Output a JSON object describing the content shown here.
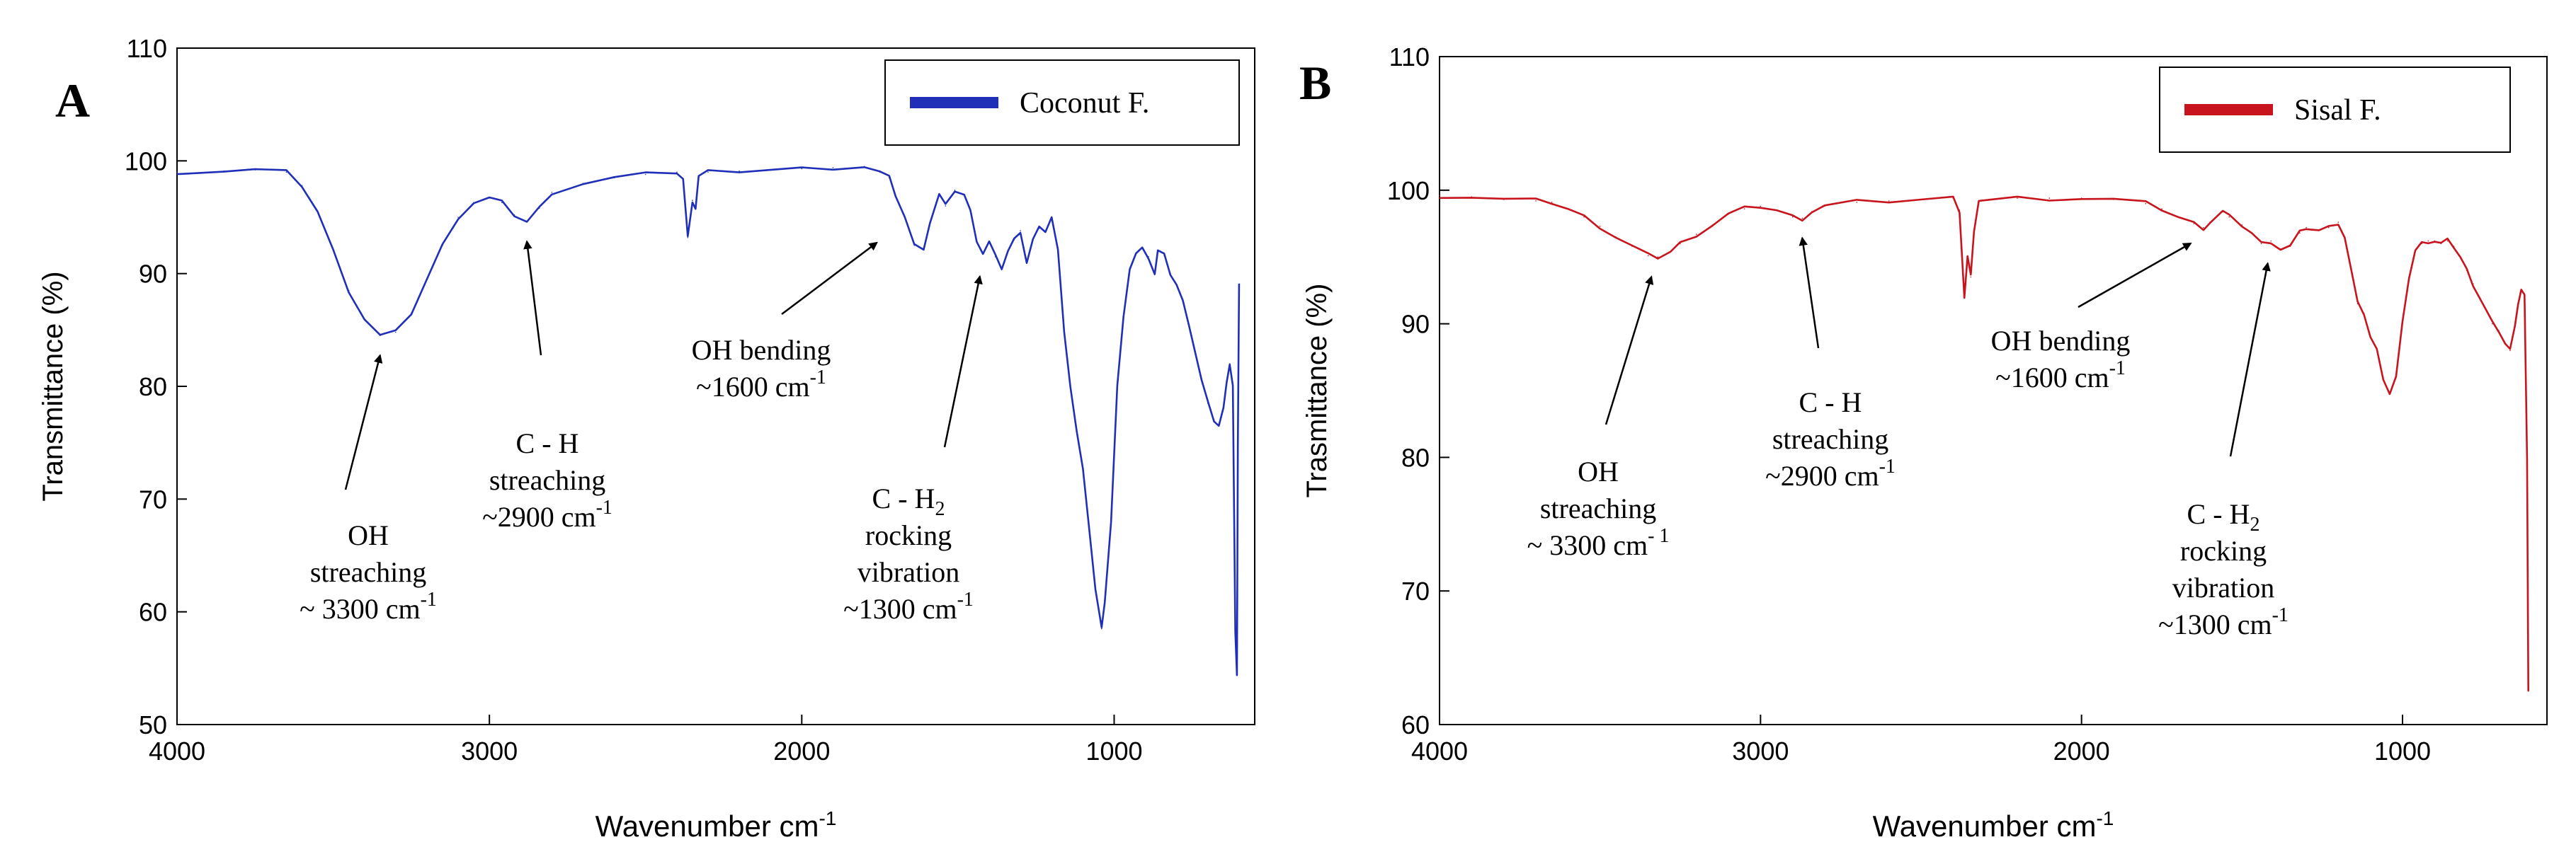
{
  "chart_data": [
    {
      "type": "line",
      "panel_label": "A",
      "xlabel": "Wavenumber cm",
      "xlabel_sup": "-1",
      "ylabel": "Transmittance (%)",
      "xlim": [
        4000,
        550
      ],
      "ylim": [
        50,
        110
      ],
      "x_ticks": [
        4000,
        3000,
        2000,
        1000
      ],
      "y_ticks": [
        50,
        60,
        70,
        80,
        90,
        100,
        110
      ],
      "series": [
        {
          "name": "Coconut F.",
          "color": "#1f2fb8",
          "points": [
            [
              4000,
              99.0
            ],
            [
              3850,
              99.1
            ],
            [
              3750,
              99.2
            ],
            [
              3650,
              99.0
            ],
            [
              3600,
              97.8
            ],
            [
              3550,
              95.5
            ],
            [
              3500,
              92.0
            ],
            [
              3450,
              88.5
            ],
            [
              3400,
              86.0
            ],
            [
              3350,
              84.5
            ],
            [
              3300,
              84.8
            ],
            [
              3250,
              86.5
            ],
            [
              3200,
              89.5
            ],
            [
              3150,
              92.5
            ],
            [
              3100,
              95.0
            ],
            [
              3050,
              96.3
            ],
            [
              3000,
              96.7
            ],
            [
              2960,
              96.3
            ],
            [
              2920,
              95.2
            ],
            [
              2880,
              94.6
            ],
            [
              2840,
              95.8
            ],
            [
              2800,
              97.2
            ],
            [
              2700,
              98.0
            ],
            [
              2600,
              98.5
            ],
            [
              2500,
              98.8
            ],
            [
              2400,
              99.0
            ],
            [
              2380,
              98.4
            ],
            [
              2365,
              93.2
            ],
            [
              2350,
              96.5
            ],
            [
              2340,
              95.8
            ],
            [
              2330,
              98.6
            ],
            [
              2300,
              99.0
            ],
            [
              2200,
              99.1
            ],
            [
              2100,
              99.2
            ],
            [
              2000,
              99.3
            ],
            [
              1900,
              99.4
            ],
            [
              1800,
              99.5
            ],
            [
              1750,
              99.0
            ],
            [
              1720,
              98.5
            ],
            [
              1700,
              97.0
            ],
            [
              1670,
              95.0
            ],
            [
              1640,
              92.5
            ],
            [
              1610,
              92.3
            ],
            [
              1590,
              94.5
            ],
            [
              1560,
              97.0
            ],
            [
              1540,
              96.0
            ],
            [
              1510,
              97.4
            ],
            [
              1480,
              97.0
            ],
            [
              1460,
              95.5
            ],
            [
              1440,
              93.0
            ],
            [
              1420,
              91.8
            ],
            [
              1400,
              92.8
            ],
            [
              1380,
              91.5
            ],
            [
              1360,
              90.5
            ],
            [
              1340,
              92.0
            ],
            [
              1320,
              93.0
            ],
            [
              1300,
              93.8
            ],
            [
              1280,
              91.0
            ],
            [
              1260,
              93.0
            ],
            [
              1240,
              94.0
            ],
            [
              1220,
              93.8
            ],
            [
              1200,
              95.0
            ],
            [
              1180,
              92.0
            ],
            [
              1160,
              85.0
            ],
            [
              1140,
              80.0
            ],
            [
              1120,
              76.0
            ],
            [
              1100,
              72.5
            ],
            [
              1080,
              67.5
            ],
            [
              1060,
              62.0
            ],
            [
              1040,
              58.5
            ],
            [
              1030,
              61.0
            ],
            [
              1010,
              68.0
            ],
            [
              990,
              80.0
            ],
            [
              970,
              86.0
            ],
            [
              950,
              90.5
            ],
            [
              930,
              91.8
            ],
            [
              910,
              92.2
            ],
            [
              890,
              91.5
            ],
            [
              870,
              90.0
            ],
            [
              860,
              92.0
            ],
            [
              840,
              91.6
            ],
            [
              820,
              90.0
            ],
            [
              800,
              89.0
            ],
            [
              780,
              87.5
            ],
            [
              760,
              85.5
            ],
            [
              740,
              83.0
            ],
            [
              720,
              80.5
            ],
            [
              700,
              78.5
            ],
            [
              680,
              77.0
            ],
            [
              665,
              76.5
            ],
            [
              650,
              78.0
            ],
            [
              640,
              80.5
            ],
            [
              630,
              82.0
            ],
            [
              620,
              80.0
            ],
            [
              612,
              58.0
            ],
            [
              607,
              54.5
            ],
            [
              604,
              75.0
            ],
            [
              600,
              89.0
            ]
          ]
        }
      ],
      "legend": {
        "label": "Coconut F.",
        "position": "top-right"
      },
      "annotations": [
        {
          "id": "oh-str",
          "lines": [
            "OH",
            "streaching",
            "~ 3300 cm"
          ],
          "sup": "-1",
          "target": [
            3350,
            84.5
          ]
        },
        {
          "id": "ch-str",
          "lines": [
            "C - H",
            "streaching",
            "~2900 cm"
          ],
          "sup": "-1",
          "target": [
            2880,
            94.6
          ]
        },
        {
          "id": "oh-bend",
          "lines": [
            "OH bending",
            "~1600 cm"
          ],
          "sup": "-1",
          "target": [
            1760,
            94.5
          ]
        },
        {
          "id": "ch2-rock",
          "lines": [
            "C - H",
            "rocking",
            "vibration",
            "~1300 cm"
          ],
          "sub": "2",
          "sup": "-1",
          "target": [
            1430,
            91.5
          ]
        }
      ]
    },
    {
      "type": "line",
      "panel_label": "B",
      "xlabel": "Wavenumber cm",
      "xlabel_sup": "-1",
      "ylabel": "Trasmittance (%)",
      "xlim": [
        4000,
        550
      ],
      "ylim": [
        60,
        110
      ],
      "x_ticks": [
        4000,
        3000,
        2000,
        1000
      ],
      "y_ticks": [
        60,
        70,
        80,
        90,
        100,
        110
      ],
      "series": [
        {
          "name": "Sisal F.",
          "color": "#c8141c",
          "points": [
            [
              4000,
              99.6
            ],
            [
              3900,
              99.5
            ],
            [
              3800,
              99.3
            ],
            [
              3700,
              99.2
            ],
            [
              3650,
              99.1
            ],
            [
              3600,
              98.6
            ],
            [
              3550,
              98.0
            ],
            [
              3500,
              97.3
            ],
            [
              3450,
              96.5
            ],
            [
              3400,
              95.8
            ],
            [
              3350,
              95.1
            ],
            [
              3320,
              95.0
            ],
            [
              3280,
              95.4
            ],
            [
              3250,
              96.0
            ],
            [
              3200,
              96.7
            ],
            [
              3150,
              97.4
            ],
            [
              3100,
              98.2
            ],
            [
              3050,
              98.6
            ],
            [
              3000,
              98.8
            ],
            [
              2950,
              98.5
            ],
            [
              2900,
              98.0
            ],
            [
              2870,
              97.9
            ],
            [
              2840,
              98.4
            ],
            [
              2800,
              98.8
            ],
            [
              2700,
              99.1
            ],
            [
              2600,
              99.2
            ],
            [
              2500,
              99.3
            ],
            [
              2400,
              99.4
            ],
            [
              2380,
              98.5
            ],
            [
              2365,
              92.0
            ],
            [
              2355,
              95.0
            ],
            [
              2345,
              93.5
            ],
            [
              2335,
              97.0
            ],
            [
              2320,
              99.2
            ],
            [
              2200,
              99.4
            ],
            [
              2100,
              99.4
            ],
            [
              2000,
              99.4
            ],
            [
              1900,
              99.3
            ],
            [
              1800,
              99.0
            ],
            [
              1750,
              98.6
            ],
            [
              1700,
              98.0
            ],
            [
              1650,
              97.5
            ],
            [
              1620,
              97.2
            ],
            [
              1600,
              97.6
            ],
            [
              1560,
              98.4
            ],
            [
              1540,
              98.0
            ],
            [
              1500,
              97.4
            ],
            [
              1470,
              96.8
            ],
            [
              1440,
              96.0
            ],
            [
              1410,
              96.2
            ],
            [
              1380,
              95.6
            ],
            [
              1350,
              95.8
            ],
            [
              1320,
              96.8
            ],
            [
              1300,
              97.2
            ],
            [
              1260,
              97.0
            ],
            [
              1230,
              97.2
            ],
            [
              1200,
              97.6
            ],
            [
              1180,
              96.5
            ],
            [
              1160,
              94.0
            ],
            [
              1140,
              91.5
            ],
            [
              1120,
              90.8
            ],
            [
              1100,
              89.0
            ],
            [
              1080,
              88.0
            ],
            [
              1060,
              86.0
            ],
            [
              1040,
              84.8
            ],
            [
              1020,
              86.0
            ],
            [
              1000,
              90.0
            ],
            [
              980,
              93.5
            ],
            [
              960,
              95.5
            ],
            [
              940,
              96.0
            ],
            [
              920,
              96.2
            ],
            [
              900,
              96.2
            ],
            [
              880,
              96.0
            ],
            [
              860,
              96.2
            ],
            [
              840,
              95.8
            ],
            [
              820,
              95.0
            ],
            [
              800,
              94.0
            ],
            [
              780,
              93.0
            ],
            [
              760,
              92.0
            ],
            [
              740,
              91.0
            ],
            [
              720,
              90.0
            ],
            [
              700,
              89.5
            ],
            [
              680,
              88.5
            ],
            [
              665,
              88.0
            ],
            [
              650,
              90.0
            ],
            [
              640,
              91.5
            ],
            [
              630,
              92.5
            ],
            [
              620,
              92.0
            ],
            [
              612,
              80.0
            ],
            [
              608,
              62.5
            ]
          ]
        }
      ],
      "legend": {
        "label": "Sisal F.",
        "position": "top-right"
      },
      "annotations": [
        {
          "id": "oh-str",
          "lines": [
            "OH",
            "streaching",
            "~ 3300 cm"
          ],
          "sup": "- 1",
          "target": [
            3340,
            95.0
          ]
        },
        {
          "id": "ch-str",
          "lines": [
            "C -  H",
            "streaching",
            "~2900 cm"
          ],
          "sup": "-1",
          "target": [
            2870,
            97.9
          ]
        },
        {
          "id": "oh-bend",
          "lines": [
            "OH bending",
            "~1600 cm"
          ],
          "sup": "-1",
          "target": [
            1660,
            97.5
          ]
        },
        {
          "id": "ch2-rock",
          "lines": [
            "C - H",
            "rocking",
            "vibration",
            "~1300 cm"
          ],
          "sub": "2",
          "sup": "-1",
          "target": [
            1420,
            96.0
          ]
        }
      ]
    }
  ]
}
